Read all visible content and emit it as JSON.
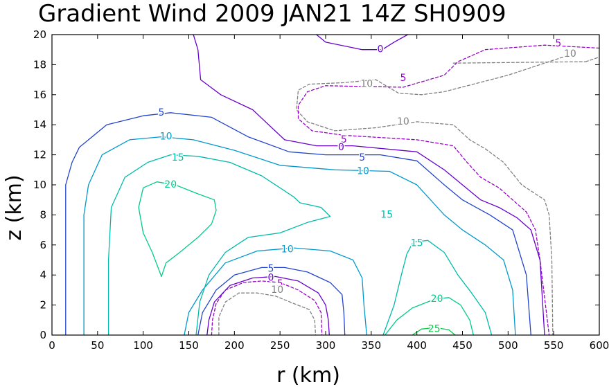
{
  "chart_data": {
    "type": "contour",
    "title": "Gradient Wind 2009 JAN21 14Z   SH0909",
    "xlabel": "r (km)",
    "ylabel": "z (km)",
    "xlim": [
      0,
      600
    ],
    "ylim": [
      0,
      20
    ],
    "xticks": [
      0,
      50,
      100,
      150,
      200,
      250,
      300,
      350,
      400,
      450,
      500,
      550,
      600
    ],
    "yticks": [
      0,
      2,
      4,
      6,
      8,
      10,
      12,
      14,
      16,
      18,
      20
    ],
    "colors": {
      "neg10": "#808080",
      "neg5": "#9900cc",
      "zero": "#6600cc",
      "pos5": "#2244cc",
      "pos10": "#0099cc",
      "pos15": "#00bbaa",
      "pos20": "#00cc88",
      "pos25": "#00cc44"
    },
    "series": [
      {
        "level": "-10",
        "color_key": "neg10",
        "dashed": true,
        "points": [
          [
            585,
            18.2
          ],
          [
            600,
            18.5
          ]
        ]
      },
      {
        "level": "-10",
        "color_key": "neg10",
        "dashed": true,
        "points": [
          [
            440,
            18.1
          ],
          [
            585,
            18.2
          ]
        ]
      },
      {
        "level": "-10",
        "color_key": "neg10",
        "dashed": true,
        "points": [
          [
            560,
            18.5
          ],
          [
            500,
            17.3
          ],
          [
            430,
            16.2
          ],
          [
            405,
            16.0
          ],
          [
            380,
            16.1
          ],
          [
            355,
            17.0
          ],
          [
            320,
            16.8
          ],
          [
            282,
            16.7
          ],
          [
            270,
            16.3
          ],
          [
            268,
            15.0
          ],
          [
            280,
            14.2
          ],
          [
            310,
            13.6
          ],
          [
            355,
            13.8
          ],
          [
            400,
            14.2
          ],
          [
            440,
            14.0
          ],
          [
            458,
            13.0
          ],
          [
            475,
            12.4
          ],
          [
            495,
            11.5
          ],
          [
            515,
            10.0
          ],
          [
            540,
            9.0
          ],
          [
            545,
            8.0
          ],
          [
            548,
            5.0
          ],
          [
            549,
            0.0
          ]
        ]
      },
      {
        "level": "-10",
        "color_key": "neg10",
        "dashed": true,
        "points": [
          [
            183,
            0.0
          ],
          [
            183,
            1.2
          ],
          [
            190,
            2.2
          ],
          [
            205,
            2.8
          ],
          [
            225,
            2.8
          ],
          [
            245,
            2.6
          ],
          [
            265,
            2.1
          ],
          [
            282,
            1.7
          ],
          [
            288,
            1.0
          ],
          [
            289,
            0.0
          ]
        ]
      },
      {
        "level": "-5",
        "color_key": "neg5",
        "dashed": true,
        "points": [
          [
            600,
            19.1
          ],
          [
            540,
            19.3
          ],
          [
            475,
            19.0
          ],
          [
            445,
            18.2
          ],
          [
            430,
            17.3
          ],
          [
            385,
            16.5
          ],
          [
            300,
            16.6
          ],
          [
            280,
            16.2
          ],
          [
            270,
            15.3
          ],
          [
            270,
            14.4
          ],
          [
            285,
            13.6
          ],
          [
            320,
            13.3
          ],
          [
            400,
            13.0
          ],
          [
            440,
            12.6
          ],
          [
            455,
            11.5
          ],
          [
            470,
            10.5
          ],
          [
            490,
            9.8
          ],
          [
            505,
            9.0
          ],
          [
            520,
            8.2
          ],
          [
            530,
            7.0
          ],
          [
            535,
            5.0
          ],
          [
            545,
            0.0
          ]
        ]
      },
      {
        "level": "-5",
        "color_key": "neg5",
        "dashed": true,
        "points": [
          [
            175,
            0.0
          ],
          [
            176,
            1.0
          ],
          [
            180,
            2.1
          ],
          [
            190,
            3.0
          ],
          [
            210,
            3.5
          ],
          [
            230,
            3.6
          ],
          [
            250,
            3.5
          ],
          [
            270,
            3.0
          ],
          [
            288,
            2.3
          ],
          [
            295,
            1.5
          ],
          [
            296,
            0.0
          ]
        ]
      },
      {
        "level": "0",
        "color_key": "zero",
        "dashed": false,
        "points": [
          [
            155,
            20.0
          ],
          [
            160,
            19.0
          ],
          [
            163,
            17.0
          ],
          [
            185,
            16.0
          ],
          [
            220,
            15.0
          ],
          [
            255,
            13.0
          ],
          [
            290,
            12.6
          ],
          [
            330,
            12.6
          ],
          [
            400,
            12.2
          ],
          [
            430,
            11.0
          ],
          [
            450,
            10.0
          ],
          [
            470,
            9.0
          ],
          [
            490,
            8.5
          ],
          [
            510,
            7.8
          ],
          [
            525,
            7.0
          ],
          [
            535,
            5.0
          ],
          [
            540,
            0.0
          ]
        ]
      },
      {
        "level": "0",
        "color_key": "zero",
        "dashed": false,
        "points": [
          [
            290,
            20.0
          ],
          [
            300,
            19.5
          ],
          [
            340,
            19.0
          ],
          [
            362,
            19.0
          ],
          [
            375,
            19.5
          ],
          [
            390,
            20.0
          ]
        ]
      },
      {
        "level": "0",
        "color_key": "zero",
        "dashed": false,
        "points": [
          [
            170,
            0.0
          ],
          [
            172,
            1.0
          ],
          [
            178,
            2.2
          ],
          [
            195,
            3.3
          ],
          [
            220,
            3.8
          ],
          [
            245,
            3.9
          ],
          [
            270,
            3.6
          ],
          [
            292,
            2.8
          ],
          [
            300,
            2.0
          ],
          [
            303,
            1.0
          ],
          [
            304,
            0.0
          ]
        ]
      },
      {
        "level": "5",
        "color_key": "pos5",
        "dashed": false,
        "points": [
          [
            15,
            0.0
          ],
          [
            15,
            6.0
          ],
          [
            15,
            10.0
          ],
          [
            22,
            11.5
          ],
          [
            30,
            12.5
          ],
          [
            60,
            14.0
          ],
          [
            100,
            14.6
          ],
          [
            130,
            14.8
          ],
          [
            175,
            14.5
          ],
          [
            215,
            13.2
          ],
          [
            260,
            12.2
          ],
          [
            300,
            12.0
          ],
          [
            360,
            12.0
          ],
          [
            400,
            11.6
          ],
          [
            430,
            10.0
          ],
          [
            450,
            9.0
          ],
          [
            480,
            8.0
          ],
          [
            505,
            7.0
          ],
          [
            520,
            4.0
          ],
          [
            525,
            0.0
          ]
        ]
      },
      {
        "level": "5",
        "color_key": "pos5",
        "dashed": false,
        "points": [
          [
            160,
            0.0
          ],
          [
            165,
            1.5
          ],
          [
            180,
            3.0
          ],
          [
            200,
            4.0
          ],
          [
            230,
            4.5
          ],
          [
            255,
            4.5
          ],
          [
            280,
            4.2
          ],
          [
            305,
            3.5
          ],
          [
            318,
            2.7
          ],
          [
            320,
            1.5
          ],
          [
            321,
            0.0
          ]
        ]
      },
      {
        "level": "10",
        "color_key": "pos10",
        "dashed": false,
        "points": [
          [
            35,
            0.0
          ],
          [
            35,
            8.0
          ],
          [
            40,
            10.0
          ],
          [
            55,
            12.0
          ],
          [
            85,
            13.0
          ],
          [
            120,
            13.2
          ],
          [
            155,
            13.0
          ],
          [
            200,
            12.3
          ],
          [
            250,
            11.3
          ],
          [
            310,
            11.0
          ],
          [
            370,
            10.9
          ],
          [
            400,
            10.0
          ],
          [
            430,
            8.0
          ],
          [
            450,
            7.0
          ],
          [
            475,
            6.0
          ],
          [
            495,
            5.0
          ],
          [
            505,
            3.0
          ],
          [
            508,
            0.0
          ]
        ]
      },
      {
        "level": "10",
        "color_key": "pos10",
        "dashed": false,
        "points": [
          [
            145,
            0.0
          ],
          [
            150,
            1.5
          ],
          [
            165,
            3.0
          ],
          [
            190,
            4.8
          ],
          [
            225,
            5.6
          ],
          [
            265,
            5.8
          ],
          [
            305,
            5.6
          ],
          [
            330,
            5.0
          ],
          [
            340,
            3.8
          ],
          [
            342,
            2.0
          ],
          [
            345,
            0.0
          ]
        ]
      },
      {
        "level": "15",
        "color_key": "pos15",
        "dashed": false,
        "points": [
          [
            62,
            0.0
          ],
          [
            62,
            5.0
          ],
          [
            65,
            8.5
          ],
          [
            80,
            10.5
          ],
          [
            105,
            11.5
          ],
          [
            130,
            12.0
          ],
          [
            160,
            11.9
          ],
          [
            195,
            11.5
          ],
          [
            230,
            10.6
          ],
          [
            255,
            9.6
          ],
          [
            265,
            9.2
          ],
          [
            272,
            8.8
          ],
          [
            280,
            8.7
          ],
          [
            295,
            8.5
          ],
          [
            305,
            7.9
          ],
          [
            280,
            7.5
          ],
          [
            250,
            6.8
          ],
          [
            215,
            6.5
          ],
          [
            190,
            5.5
          ],
          [
            172,
            4.0
          ],
          [
            162,
            2.2
          ],
          [
            158,
            0.0
          ]
        ]
      },
      {
        "level": "15",
        "color_key": "pos15",
        "dashed": false,
        "points": [
          [
            363,
            0.0
          ],
          [
            375,
            2.0
          ],
          [
            383,
            4.0
          ],
          [
            389,
            5.4
          ],
          [
            396,
            6.2
          ],
          [
            412,
            6.3
          ],
          [
            430,
            5.5
          ],
          [
            445,
            4.0
          ],
          [
            460,
            2.8
          ],
          [
            475,
            1.5
          ],
          [
            482,
            0.0
          ]
        ]
      },
      {
        "level": "20",
        "color_key": "pos20",
        "dashed": false,
        "points": [
          [
            120,
            3.9
          ],
          [
            110,
            5.5
          ],
          [
            100,
            6.8
          ],
          [
            95,
            8.5
          ],
          [
            100,
            9.8
          ],
          [
            115,
            10.2
          ],
          [
            135,
            10.0
          ],
          [
            160,
            9.4
          ],
          [
            178,
            9.0
          ],
          [
            180,
            8.3
          ],
          [
            175,
            7.4
          ],
          [
            160,
            6.5
          ],
          [
            140,
            5.5
          ],
          [
            125,
            4.8
          ],
          [
            120,
            3.9
          ]
        ]
      },
      {
        "level": "20",
        "color_key": "pos20",
        "dashed": false,
        "points": [
          [
            365,
            0.0
          ],
          [
            378,
            1.0
          ],
          [
            395,
            1.8
          ],
          [
            420,
            2.4
          ],
          [
            435,
            2.5
          ],
          [
            448,
            2.0
          ],
          [
            458,
            1.0
          ],
          [
            462,
            0.0
          ]
        ]
      },
      {
        "level": "25",
        "color_key": "pos25",
        "dashed": false,
        "points": [
          [
            395,
            0.0
          ],
          [
            405,
            0.4
          ],
          [
            420,
            0.5
          ],
          [
            435,
            0.35
          ],
          [
            442,
            0.0
          ]
        ]
      }
    ],
    "contour_labels": [
      {
        "text": "0",
        "x": 360,
        "y": 19.0,
        "color_key": "zero"
      },
      {
        "text": "5",
        "x": 555,
        "y": 19.4,
        "color_key": "neg5"
      },
      {
        "text": "10",
        "x": 568,
        "y": 18.7,
        "color_key": "neg10"
      },
      {
        "text": "5",
        "x": 385,
        "y": 17.1,
        "color_key": "neg5"
      },
      {
        "text": "10",
        "x": 345,
        "y": 16.7,
        "color_key": "neg10"
      },
      {
        "text": "10",
        "x": 385,
        "y": 14.2,
        "color_key": "neg10"
      },
      {
        "text": "5",
        "x": 320,
        "y": 13.0,
        "color_key": "neg5"
      },
      {
        "text": "0",
        "x": 317,
        "y": 12.5,
        "color_key": "zero"
      },
      {
        "text": "5",
        "x": 340,
        "y": 11.8,
        "color_key": "pos5"
      },
      {
        "text": "10",
        "x": 341,
        "y": 10.9,
        "color_key": "pos10"
      },
      {
        "text": "5",
        "x": 120,
        "y": 14.8,
        "color_key": "pos5"
      },
      {
        "text": "10",
        "x": 125,
        "y": 13.2,
        "color_key": "pos10"
      },
      {
        "text": "15",
        "x": 138,
        "y": 11.8,
        "color_key": "pos15"
      },
      {
        "text": "20",
        "x": 130,
        "y": 10.0,
        "color_key": "pos20"
      },
      {
        "text": "15",
        "x": 367,
        "y": 8.0,
        "color_key": "pos15"
      },
      {
        "text": "10",
        "x": 258,
        "y": 5.7,
        "color_key": "pos10"
      },
      {
        "text": "15",
        "x": 400,
        "y": 6.1,
        "color_key": "pos15"
      },
      {
        "text": "5",
        "x": 240,
        "y": 4.4,
        "color_key": "pos5"
      },
      {
        "text": "0",
        "x": 240,
        "y": 3.8,
        "color_key": "zero"
      },
      {
        "text": "5",
        "x": 250,
        "y": 3.4,
        "color_key": "neg5"
      },
      {
        "text": "10",
        "x": 247,
        "y": 3.0,
        "color_key": "neg10"
      },
      {
        "text": "20",
        "x": 422,
        "y": 2.4,
        "color_key": "pos20"
      },
      {
        "text": "25",
        "x": 419,
        "y": 0.4,
        "color_key": "pos25"
      }
    ]
  }
}
